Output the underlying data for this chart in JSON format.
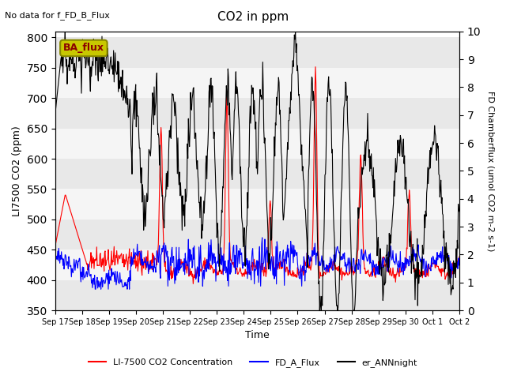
{
  "title": "CO2 in ppm",
  "top_left_text": "No data for f_FD_B_Flux",
  "ylabel_left": "LI7500 CO2 (ppm)",
  "ylabel_right": "FD Chamberflux (umol CO2 m-2 s-1)",
  "xlabel": "Time",
  "ylim_left": [
    350,
    810
  ],
  "ylim_right": [
    0.0,
    10.0
  ],
  "yticks_left": [
    350,
    400,
    450,
    500,
    550,
    600,
    650,
    700,
    750,
    800
  ],
  "yticks_right": [
    0.0,
    1.0,
    2.0,
    3.0,
    4.0,
    5.0,
    6.0,
    7.0,
    8.0,
    9.0,
    10.0
  ],
  "xtick_labels": [
    "Sep 17",
    "Sep 18",
    "Sep 19",
    "Sep 20",
    "Sep 21",
    "Sep 22",
    "Sep 23",
    "Sep 24",
    "Sep 25",
    "Sep 26",
    "Sep 27",
    "Sep 28",
    "Sep 29",
    "Sep 30",
    "Oct 1",
    "Oct 2"
  ],
  "ba_flux_box_color": "#c8c800",
  "ba_flux_text_color": "#8b0000",
  "legend_labels": [
    "LI-7500 CO2 Concentration",
    "FD_A_Flux",
    "er_ANNnight"
  ],
  "legend_colors": [
    "#ff0000",
    "#0000ff",
    "#000000"
  ],
  "line_red_color": "#ff0000",
  "line_blue_color": "#0000ff",
  "line_black_color": "#000000",
  "background_color": "#ffffff",
  "grid_band_colors": [
    "#e8e8e8",
    "#f5f5f5"
  ],
  "n_days": 16,
  "pts_per_day": 48
}
